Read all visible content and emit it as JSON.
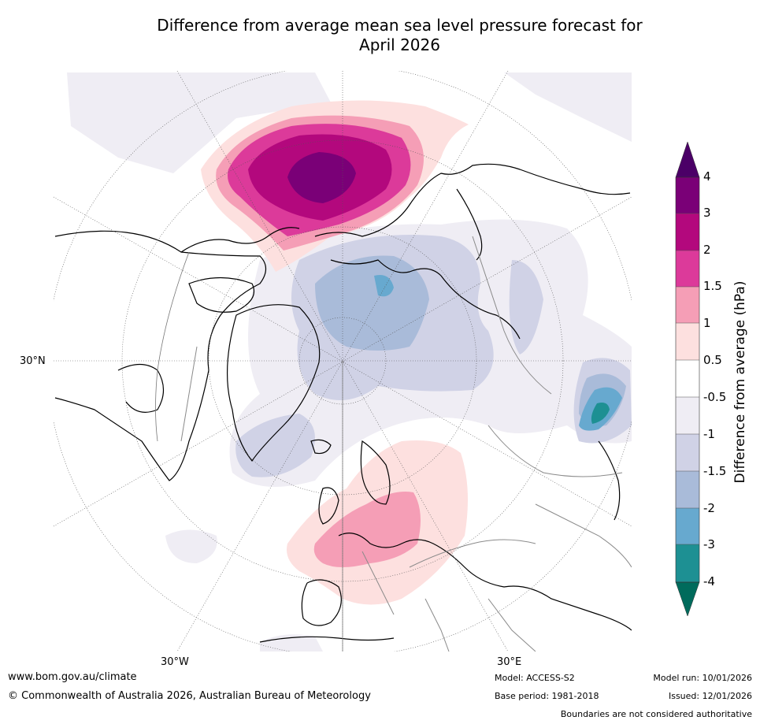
{
  "title": {
    "line1": "Difference from average mean sea level pressure forecast for",
    "line2": "April 2026"
  },
  "map": {
    "projection": "North polar stereographic",
    "lon_labels": {
      "w": "30°W",
      "e": "30°E"
    },
    "lat_label": "30°N"
  },
  "colorbar": {
    "label": "Difference from average (hPa)",
    "levels": [
      "4",
      "3",
      "2",
      "1.5",
      "1",
      "0.5",
      "-0.5",
      "-1",
      "-1.5",
      "-2",
      "-3",
      "-4"
    ],
    "colors": {
      "over": "#4b0067",
      "3_to_4": "#7a0077",
      "2_to_3": "#b3087d",
      "1.5_to_2": "#dc3a9a",
      "1_to_1.5": "#f59eb6",
      "0.5_to_1": "#fde0df",
      "neutral": "#ffffff",
      "m1_to_m0.5": "#efedf4",
      "m1.5_to_m1": "#d0d2e6",
      "m2_to_m1.5": "#a9bbd9",
      "m3_to_m2": "#67a9cf",
      "m4_to_m3": "#1d9093",
      "under": "#006b5c"
    }
  },
  "footer": {
    "website": "www.bom.gov.au/climate",
    "copyright": "© Commonwealth of Australia 2026, Australian Bureau of Meteorology",
    "model": "Model: ACCESS-S2",
    "model_run": "Model run: 10/01/2026",
    "base_period": "Base period: 1981-2018",
    "issued": "Issued: 12/01/2026",
    "disclaimer": "Boundaries are not considered authoritative"
  }
}
